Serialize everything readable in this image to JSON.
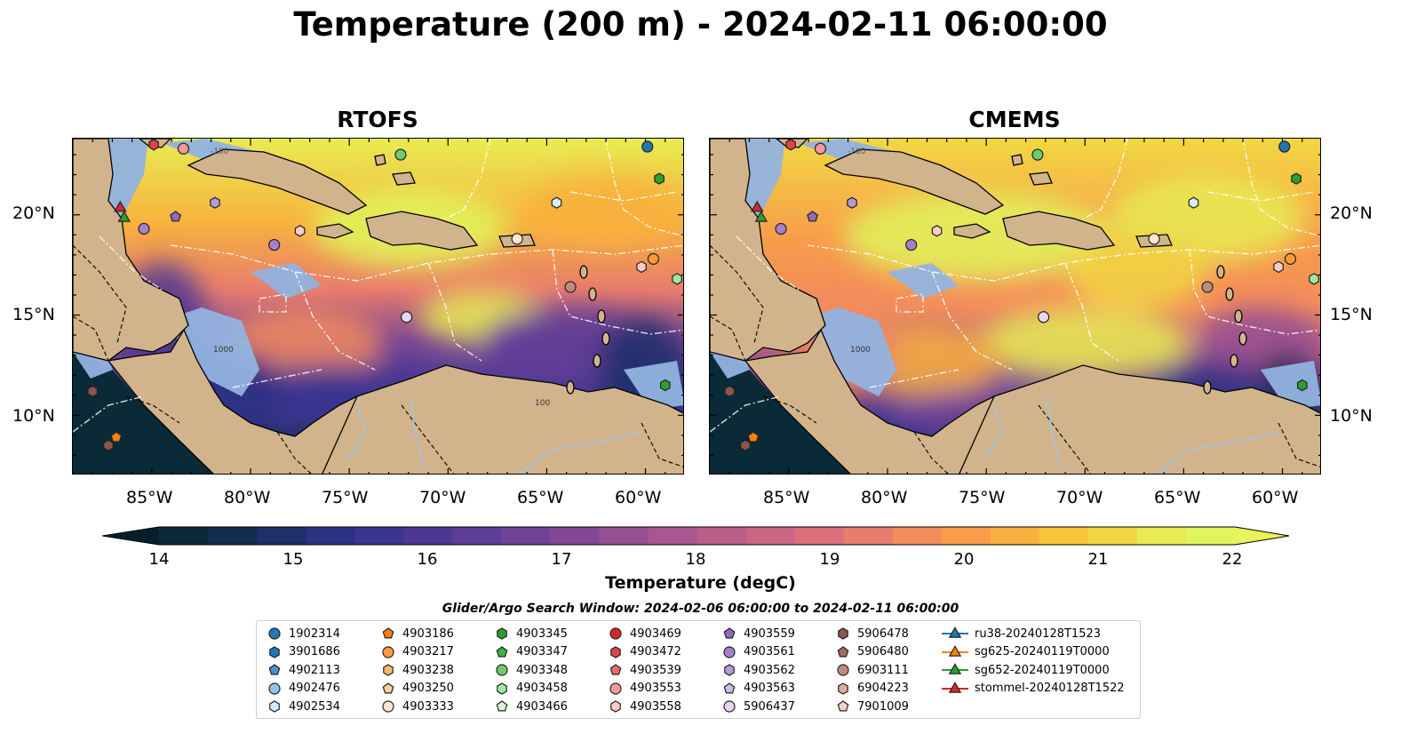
{
  "title": "Temperature (200 m) - 2024-02-11 06:00:00",
  "panels": [
    {
      "title": "RTOFS"
    },
    {
      "title": "CMEMS"
    }
  ],
  "axes": {
    "lon_ticks": [
      "85°W",
      "80°W",
      "75°W",
      "70°W",
      "65°W",
      "60°W"
    ],
    "lat_ticks": [
      "20°N",
      "15°N",
      "10°N"
    ]
  },
  "colorbar": {
    "label": "Temperature (degC)",
    "ticks": [
      "14",
      "15",
      "16",
      "17",
      "18",
      "19",
      "20",
      "21",
      "22"
    ],
    "range": [
      14,
      22
    ],
    "colors": [
      "#0a2a38",
      "#142c4e",
      "#1e2f6a",
      "#2a3282",
      "#3a3590",
      "#4c3893",
      "#5e3d96",
      "#704296",
      "#834895",
      "#964f93",
      "#a8568f",
      "#ba5e89",
      "#cb6682",
      "#da7079",
      "#e87c6d",
      "#f38b5d",
      "#f89c4a",
      "#f9b03d",
      "#f7c43a",
      "#f1d842",
      "#e8ec52",
      "#e0f55c"
    ],
    "under_color": "#05202c",
    "over_color": "#e8f55a"
  },
  "legend": {
    "title": "Glider/Argo Search Window: 2024-02-06 06:00:00 to 2024-02-11 06:00:00",
    "columns": [
      [
        {
          "label": "1902314",
          "marker": "circle",
          "color": "#1f77b4"
        },
        {
          "label": "3901686",
          "marker": "hexagon",
          "color": "#1f77b4"
        },
        {
          "label": "4902113",
          "marker": "pentagon",
          "color": "#4a8fd0"
        },
        {
          "label": "4902476",
          "marker": "circle",
          "color": "#8ec3ec"
        },
        {
          "label": "4902534",
          "marker": "hexagon",
          "color": "#d6eefb"
        }
      ],
      [
        {
          "label": "4903186",
          "marker": "pentagon",
          "color": "#ff7f0e"
        },
        {
          "label": "4903217",
          "marker": "circle",
          "color": "#ff9a3c"
        },
        {
          "label": "4903238",
          "marker": "hexagon",
          "color": "#ffb56b"
        },
        {
          "label": "4903250",
          "marker": "pentagon",
          "color": "#ffcf9c"
        },
        {
          "label": "4903333",
          "marker": "circle",
          "color": "#ffe7cc"
        }
      ],
      [
        {
          "label": "4903345",
          "marker": "hexagon",
          "color": "#2ca02c"
        },
        {
          "label": "4903347",
          "marker": "pentagon",
          "color": "#3eb33e"
        },
        {
          "label": "4903348",
          "marker": "circle",
          "color": "#6dcc6d"
        },
        {
          "label": "4903458",
          "marker": "hexagon",
          "color": "#a3e5a3"
        },
        {
          "label": "4903466",
          "marker": "pentagon",
          "color": "#d6f7d6"
        }
      ],
      [
        {
          "label": "4903469",
          "marker": "circle",
          "color": "#d62728"
        },
        {
          "label": "4903472",
          "marker": "hexagon",
          "color": "#e04446"
        },
        {
          "label": "4903539",
          "marker": "pentagon",
          "color": "#e96b6c"
        },
        {
          "label": "4903553",
          "marker": "circle",
          "color": "#f19a9a"
        },
        {
          "label": "4903558",
          "marker": "hexagon",
          "color": "#f9cccc"
        }
      ],
      [
        {
          "label": "4903559",
          "marker": "pentagon",
          "color": "#9467bd"
        },
        {
          "label": "4903561",
          "marker": "circle",
          "color": "#a67fcb"
        },
        {
          "label": "4903562",
          "marker": "hexagon",
          "color": "#b999d8"
        },
        {
          "label": "4903563",
          "marker": "pentagon",
          "color": "#cfb7e6"
        },
        {
          "label": "5906437",
          "marker": "circle",
          "color": "#e6d6f4"
        }
      ],
      [
        {
          "label": "5906478",
          "marker": "hexagon",
          "color": "#8c564b"
        },
        {
          "label": "5906480",
          "marker": "pentagon",
          "color": "#a56b5f"
        },
        {
          "label": "6903111",
          "marker": "circle",
          "color": "#c28a7e"
        },
        {
          "label": "6904223",
          "marker": "hexagon",
          "color": "#dfada4"
        },
        {
          "label": "7901009",
          "marker": "pentagon",
          "color": "#f5d3cd"
        }
      ],
      [
        {
          "label": "ru38-20240128T1523",
          "marker": "triangle",
          "color": "#1f77b4"
        },
        {
          "label": "sg625-20240119T0000",
          "marker": "triangle",
          "color": "#ff7f0e"
        },
        {
          "label": "sg652-20240119T0000",
          "marker": "triangle",
          "color": "#2ca02c"
        },
        {
          "label": "stommel-20240128T1522",
          "marker": "triangle",
          "color": "#d62728"
        }
      ]
    ]
  },
  "map_overlay_labels": [
    "-100",
    "1000",
    "100"
  ],
  "markers": [
    {
      "id": "4903472",
      "lon": -84.9,
      "lat": 23.5
    },
    {
      "id": "4903553",
      "lon": -83.4,
      "lat": 23.3
    },
    {
      "id": "4903348",
      "lon": -72.4,
      "lat": 23.0
    },
    {
      "id": "1902314",
      "lon": -59.9,
      "lat": 23.4
    },
    {
      "id": "4903345",
      "lon": -59.3,
      "lat": 21.8
    },
    {
      "id": "4903562",
      "lon": -81.8,
      "lat": 20.6
    },
    {
      "id": "4903559",
      "lon": -83.8,
      "lat": 19.9
    },
    {
      "id": "4903561",
      "lon": -85.4,
      "lat": 19.3
    },
    {
      "id": "4902534",
      "lon": -64.5,
      "lat": 20.6
    },
    {
      "id": "4903558",
      "lon": -77.5,
      "lat": 19.2
    },
    {
      "id": "4903561b",
      "lon": -78.8,
      "lat": 18.5
    },
    {
      "id": "4903333",
      "lon": -66.5,
      "lat": 18.8
    },
    {
      "id": "4903217",
      "lon": -59.6,
      "lat": 17.8
    },
    {
      "id": "4903558b",
      "lon": -60.2,
      "lat": 17.4
    },
    {
      "id": "4903458",
      "lon": -58.4,
      "lat": 16.8
    },
    {
      "id": "6903111",
      "lon": -63.8,
      "lat": 16.4
    },
    {
      "id": "5906437",
      "lon": -72.1,
      "lat": 14.9
    },
    {
      "id": "4903345b",
      "lon": -59.0,
      "lat": 11.5
    },
    {
      "id": "5906478",
      "lon": -88.0,
      "lat": 11.2
    },
    {
      "id": "4903186",
      "lon": -86.8,
      "lat": 8.9
    },
    {
      "id": "5906478b",
      "lon": -87.2,
      "lat": 8.5
    }
  ],
  "gliders": [
    {
      "id": "stommel-20240128T1522",
      "lon": -86.6,
      "lat": 20.4
    },
    {
      "id": "sg652-20240119T0000",
      "lon": -86.4,
      "lat": 19.9
    }
  ]
}
